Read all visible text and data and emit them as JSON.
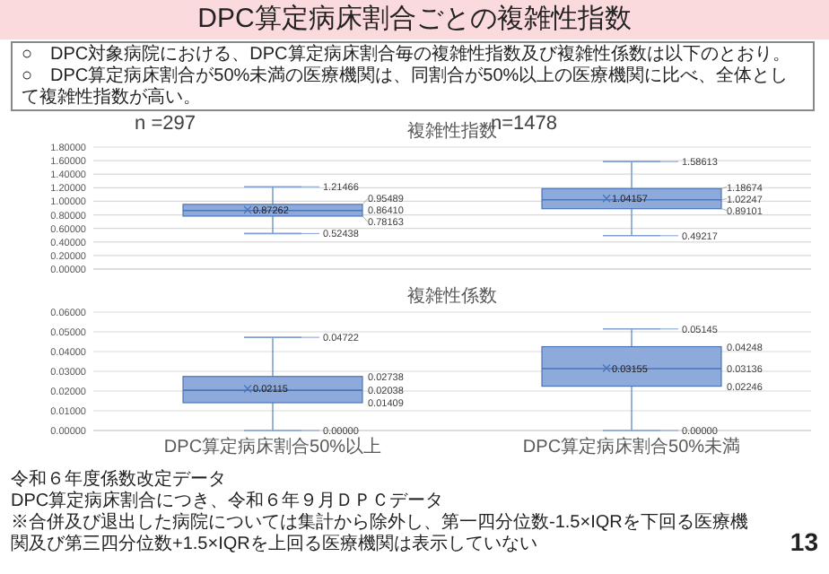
{
  "chart_data": [
    {
      "type": "box",
      "title": "複雑性指数",
      "categories": [
        null,
        null
      ],
      "tick_labels": "y",
      "grid": "y",
      "color": "#8eaadb",
      "boxes": [
        {
          "low": 0.52438,
          "q1": 0.78163,
          "median": 0.8641,
          "q3": 0.95489,
          "high": 1.21466,
          "mean": 0.87262
        },
        {
          "low": 0.49217,
          "q1": 0.89101,
          "median": 1.02247,
          "q3": 1.18674,
          "high": 1.58613,
          "mean": 1.04157
        }
      ],
      "value_labels": [
        {
          "low": "0.52438",
          "q1": "0.78163",
          "median": "0.86410",
          "q3": "0.95489",
          "high": "1.21466",
          "mean": "0.87262"
        },
        {
          "low": "0.49217",
          "q1": "0.89101",
          "median": "1.02247",
          "q3": "1.18674",
          "high": "1.58613",
          "mean": "1.04157"
        }
      ],
      "ylim": [
        0,
        1.8
      ],
      "yticks": [
        {
          "value": 0,
          "label": "0.00000"
        },
        {
          "value": 0.2,
          "label": "0.20000"
        },
        {
          "value": 0.4,
          "label": "0.40000"
        },
        {
          "value": 0.6,
          "label": "0.60000"
        },
        {
          "value": 0.8,
          "label": "0.80000"
        },
        {
          "value": 1.0,
          "label": "1.00000"
        },
        {
          "value": 1.2,
          "label": "1.20000"
        },
        {
          "value": 1.4,
          "label": "1.40000"
        },
        {
          "value": 1.6,
          "label": "1.60000"
        },
        {
          "value": 1.8,
          "label": "1.80000"
        }
      ],
      "annotations": [
        "DPC算定病床割合ごとの複雑性指数",
        "○　DPC対象病院における、DPC算定病床割合毎の複雑性指数及び複雑性係数は以下のとおり。",
        "○　DPC算定病床割合が50%未満の医療機関は、同割合が50%以上の医療機関に比べ、全体として複雑性指数が高い。",
        "n =297",
        "n=1478"
      ]
    },
    {
      "type": "box",
      "title": "複雑性係数",
      "categories": [
        "DPC算定病床割合50%以上",
        "DPC算定病床割合50%未満"
      ],
      "grid": "y",
      "color": "#8eaadb",
      "boxes": [
        {
          "low": 0,
          "q1": 0.01409,
          "median": 0.02038,
          "q3": 0.02738,
          "high": 0.04722,
          "mean": 0.02115
        },
        {
          "low": 0,
          "q1": 0.02246,
          "median": 0.03136,
          "q3": 0.04248,
          "high": 0.05145,
          "mean": 0.03155
        }
      ],
      "value_labels": [
        {
          "low": "0.00000",
          "q1": "0.01409",
          "median": "0.02038",
          "q3": "0.02738",
          "high": "0.04722",
          "mean": "0.02115"
        },
        {
          "low": "0.00000",
          "q1": "0.02246",
          "median": "0.03136",
          "q3": "0.04248",
          "high": "0.05145",
          "mean": "0.03155"
        }
      ],
      "ylim": [
        0,
        0.06
      ],
      "yticks": [
        {
          "value": 0,
          "label": "0.00000"
        },
        {
          "value": 0.01,
          "label": "0.01000"
        },
        {
          "value": 0.02,
          "label": "0.02000"
        },
        {
          "value": 0.03,
          "label": "0.03000"
        },
        {
          "value": 0.04,
          "label": "0.04000"
        },
        {
          "value": 0.05,
          "label": "0.05000"
        },
        {
          "value": 0.06,
          "label": "0.06000"
        }
      ],
      "annotations": [
        "令和６年度係数改定データ",
        "DPC算定病床割合につき、令和６年９月ＤＰＣデータ",
        "※合併及び退出した病院については集計から除外し、第一四分位数-1.5×IQRを下回る医療機関及び第三四分位数+1.5×IQRを上回る医療機関は表示していない",
        "13"
      ]
    }
  ]
}
